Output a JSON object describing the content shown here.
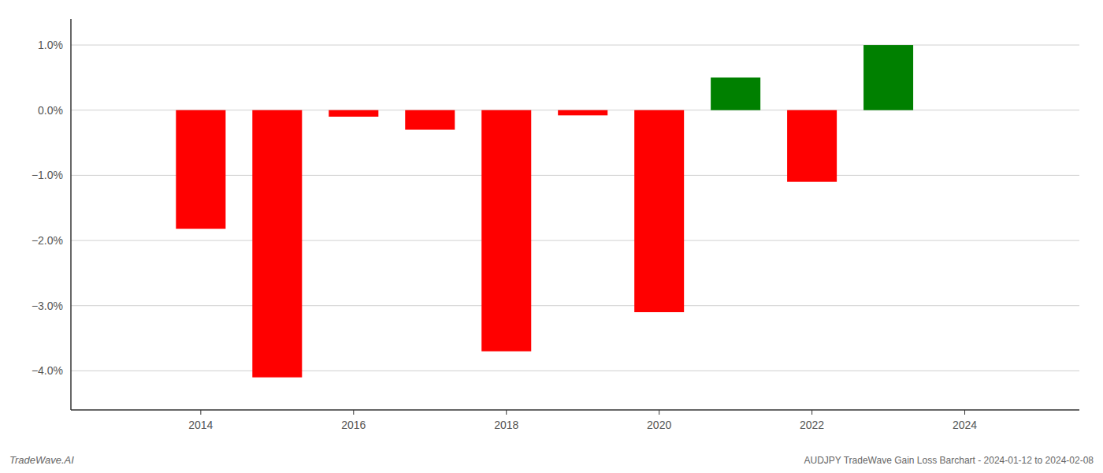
{
  "chart_data": {
    "type": "bar",
    "title": "AUDJPY TradeWave Gain Loss Barchart - 2024-01-12 to 2024-02-08",
    "annotations": [
      "TradeWave.AI"
    ],
    "x": [
      2014,
      2015,
      2016,
      2017,
      2018,
      2019,
      2020,
      2021,
      2022,
      2023
    ],
    "values": [
      -1.82,
      -4.1,
      -0.1,
      -0.3,
      -3.7,
      -0.08,
      -3.1,
      0.5,
      -1.1,
      1.0
    ],
    "colors": [
      "#ff0000",
      "#ff0000",
      "#ff0000",
      "#ff0000",
      "#ff0000",
      "#ff0000",
      "#ff0000",
      "#008000",
      "#ff0000",
      "#008000"
    ],
    "xlim": [
      2012.3,
      2025.5
    ],
    "xticks": [
      2014,
      2016,
      2018,
      2020,
      2022,
      2024
    ],
    "ylim": [
      -4.6,
      1.4
    ],
    "yticks": [
      {
        "value": -4.0,
        "label": "−4.0%"
      },
      {
        "value": -3.0,
        "label": "−3.0%"
      },
      {
        "value": -2.0,
        "label": "−2.0%"
      },
      {
        "value": -1.0,
        "label": "−1.0%"
      },
      {
        "value": 0.0,
        "label": "0.0%"
      },
      {
        "value": 1.0,
        "label": "1.0%"
      }
    ],
    "grid": true
  }
}
